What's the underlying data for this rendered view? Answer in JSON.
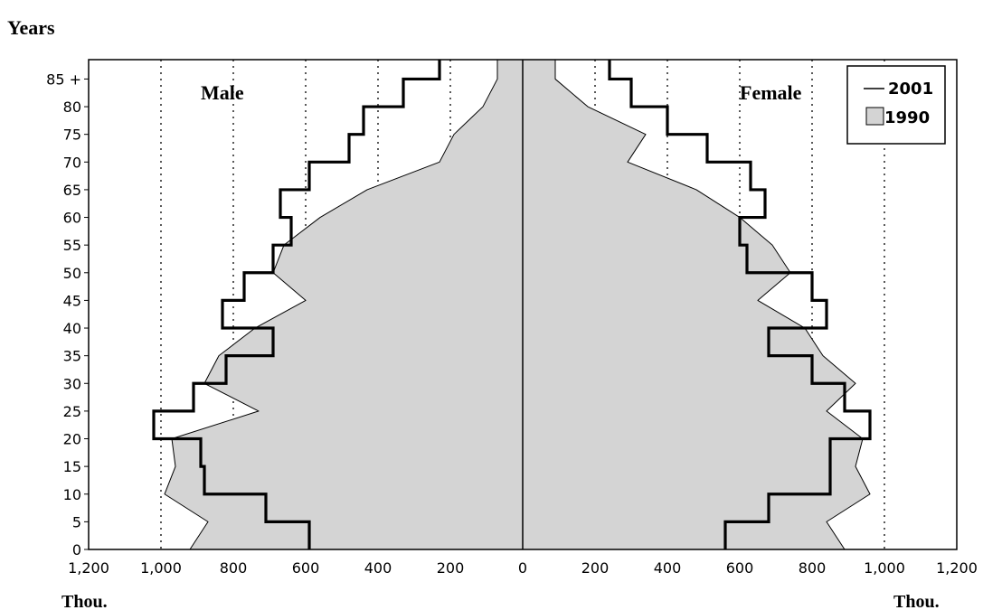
{
  "chart_data": {
    "type": "population-pyramid",
    "ylabel": "Years",
    "xlabel_left": "Thou.",
    "xlabel_right": "Thou.",
    "side_labels": {
      "left": "Male",
      "right": "Female"
    },
    "age_groups": [
      "0-4",
      "5-9",
      "10-14",
      "15-19",
      "20-24",
      "25-29",
      "30-34",
      "35-39",
      "40-44",
      "45-49",
      "50-54",
      "55-59",
      "60-64",
      "65-69",
      "70-74",
      "75-79",
      "80-84",
      "85+"
    ],
    "y_ticks": [
      "0",
      "5",
      "10",
      "15",
      "20",
      "25",
      "30",
      "35",
      "40",
      "45",
      "50",
      "55",
      "60",
      "65",
      "70",
      "75",
      "80",
      "85 +"
    ],
    "x_ticks": [
      "1,200",
      "1,000",
      "800",
      "600",
      "400",
      "200",
      "0",
      "200",
      "400",
      "600",
      "800",
      "1,000",
      "1,200"
    ],
    "xlim": [
      -1200,
      1200
    ],
    "ylim": [
      0,
      88.5
    ],
    "grid": "vertical dotted at 200, 400, 600, 800, 1000",
    "legend": {
      "position": "top-right",
      "entries": [
        {
          "label": "2001",
          "style": "line"
        },
        {
          "label": "1990",
          "style": "shaded"
        }
      ]
    },
    "series": [
      {
        "name": "2001",
        "style": "step-outline",
        "male": [
          590,
          710,
          880,
          890,
          1020,
          910,
          820,
          690,
          830,
          770,
          690,
          640,
          670,
          590,
          480,
          440,
          330,
          230
        ],
        "female": [
          560,
          680,
          850,
          850,
          960,
          890,
          800,
          680,
          840,
          800,
          620,
          600,
          670,
          630,
          510,
          400,
          300,
          240
        ]
      },
      {
        "name": "1990",
        "style": "shaded-area",
        "male_points": [
          [
            0,
            920
          ],
          [
            5,
            870
          ],
          [
            10,
            990
          ],
          [
            15,
            960
          ],
          [
            20,
            970
          ],
          [
            25,
            730
          ],
          [
            30,
            880
          ],
          [
            35,
            840
          ],
          [
            40,
            740
          ],
          [
            45,
            600
          ],
          [
            50,
            690
          ],
          [
            55,
            660
          ],
          [
            60,
            560
          ],
          [
            65,
            430
          ],
          [
            70,
            230
          ],
          [
            75,
            190
          ],
          [
            80,
            110
          ],
          [
            85,
            70
          ]
        ],
        "female_points": [
          [
            0,
            890
          ],
          [
            5,
            840
          ],
          [
            10,
            960
          ],
          [
            15,
            920
          ],
          [
            20,
            940
          ],
          [
            25,
            840
          ],
          [
            30,
            920
          ],
          [
            35,
            830
          ],
          [
            40,
            780
          ],
          [
            45,
            650
          ],
          [
            50,
            740
          ],
          [
            55,
            690
          ],
          [
            60,
            600
          ],
          [
            65,
            480
          ],
          [
            70,
            290
          ],
          [
            75,
            340
          ],
          [
            80,
            180
          ],
          [
            85,
            90
          ]
        ]
      }
    ]
  }
}
